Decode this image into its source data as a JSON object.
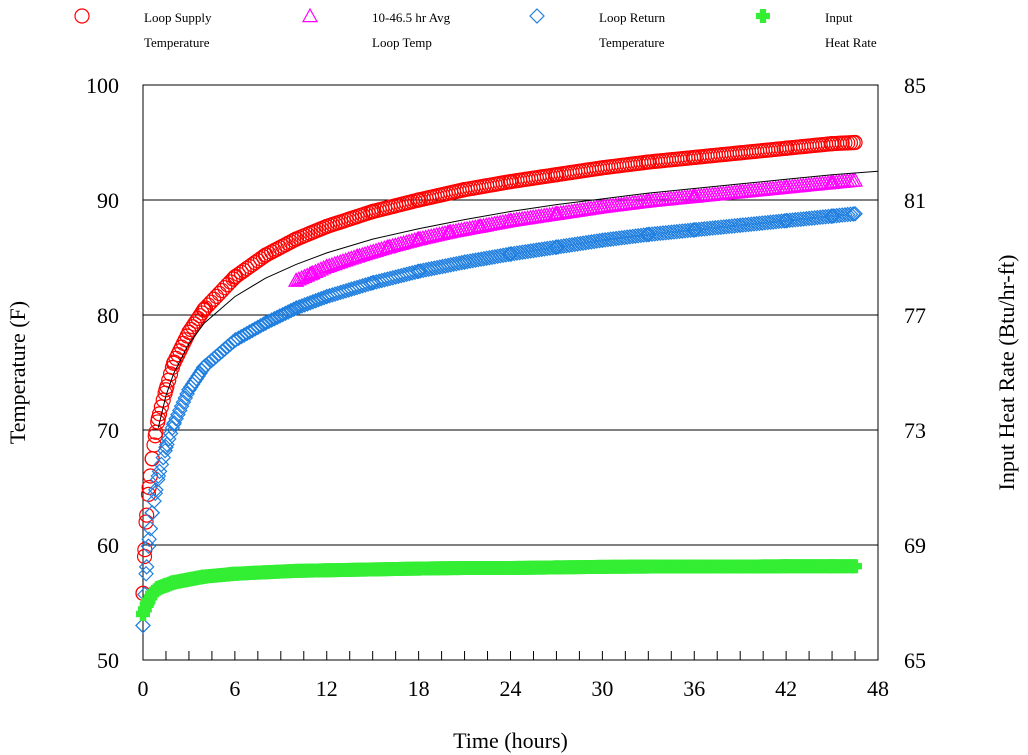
{
  "chart_data": {
    "type": "scatter",
    "title": "",
    "xlabel": "Time (hours)",
    "ylabel": "Temperature (F)",
    "y2label": "Input Heat Rate (Btu/hr-ft)",
    "xlim": [
      0,
      48
    ],
    "ylim": [
      50,
      100
    ],
    "y2lim": [
      65,
      85
    ],
    "xticks": [
      "0",
      "6",
      "12",
      "18",
      "24",
      "30",
      "36",
      "42",
      "48"
    ],
    "yticks": [
      "50",
      "60",
      "70",
      "80",
      "90",
      "100"
    ],
    "y2ticks": [
      "65",
      "69",
      "73",
      "77",
      "81",
      "85"
    ],
    "grid": "horizontal",
    "legend_position": "top",
    "series": [
      {
        "name": "Loop Supply Temperature",
        "name_lines": [
          "Loop Supply",
          "Temperature"
        ],
        "marker": "circle",
        "color": "#ff0000",
        "axis": "left",
        "x": [
          0,
          0.1,
          0.2,
          0.4,
          0.6,
          0.8,
          1,
          1.5,
          2,
          3,
          4,
          6,
          8,
          10,
          12,
          15,
          18,
          21,
          24,
          27,
          30,
          33,
          36,
          39,
          42,
          45,
          46.5
        ],
        "y": [
          55.8,
          59,
          62,
          65,
          67.5,
          69.5,
          71,
          73.5,
          75.8,
          78.5,
          80.5,
          83.3,
          85.2,
          86.6,
          87.7,
          89,
          90,
          90.9,
          91.6,
          92.2,
          92.8,
          93.3,
          93.7,
          94.1,
          94.5,
          94.9,
          95
        ]
      },
      {
        "name": "10-46.5 hr Avg Loop Temp",
        "name_lines": [
          "10-46.5 hr Avg",
          "Loop Temp"
        ],
        "marker": "triangle",
        "color": "#ff00ff",
        "axis": "left",
        "x": [
          10,
          11,
          12,
          14,
          16,
          18,
          20,
          22,
          24,
          27,
          30,
          33,
          36,
          39,
          42,
          45,
          46.5
        ],
        "y": [
          83,
          83.6,
          84.2,
          85.1,
          85.9,
          86.6,
          87.2,
          87.7,
          88.2,
          88.8,
          89.4,
          89.9,
          90.3,
          90.7,
          91.1,
          91.5,
          91.7
        ]
      },
      {
        "name": "Loop Return Temperature",
        "name_lines": [
          "Loop Return",
          "Temperature"
        ],
        "marker": "diamond",
        "color": "#1f7fe0",
        "axis": "left",
        "x": [
          0,
          0.2,
          0.4,
          0.6,
          0.8,
          1,
          1.5,
          2,
          3,
          4,
          6,
          8,
          10,
          12,
          15,
          18,
          21,
          24,
          27,
          30,
          33,
          36,
          39,
          42,
          45,
          46.5
        ],
        "y": [
          53,
          57.5,
          60.5,
          62.8,
          64.5,
          66,
          68.5,
          70.5,
          73.5,
          75.5,
          77.8,
          79.3,
          80.6,
          81.6,
          82.8,
          83.8,
          84.6,
          85.3,
          85.9,
          86.5,
          87,
          87.4,
          87.8,
          88.2,
          88.6,
          88.8
        ]
      },
      {
        "name": "Input Heat Rate",
        "name_lines": [
          "Input",
          "Heat Rate"
        ],
        "marker": "plus",
        "color": "#33ee33",
        "axis": "right",
        "x": [
          0,
          0.3,
          0.6,
          1,
          1.5,
          2,
          3,
          4,
          6,
          8,
          10,
          12,
          15,
          18,
          21,
          24,
          27,
          30,
          33,
          36,
          39,
          42,
          45,
          46.5
        ],
        "y": [
          66.6,
          67,
          67.3,
          67.5,
          67.6,
          67.7,
          67.8,
          67.9,
          68,
          68.05,
          68.1,
          68.12,
          68.15,
          68.18,
          68.2,
          68.2,
          68.22,
          68.24,
          68.25,
          68.25,
          68.25,
          68.26,
          68.26,
          68.26
        ]
      }
    ],
    "fit_line": {
      "color": "#000000",
      "x": [
        1,
        1.5,
        2,
        3,
        4,
        6,
        8,
        10,
        12,
        15,
        18,
        21,
        24,
        27,
        30,
        33,
        36,
        39,
        42,
        45,
        48
      ],
      "y": [
        70.2,
        73,
        74.9,
        77.5,
        79.3,
        81.6,
        83.2,
        84.4,
        85.4,
        86.6,
        87.5,
        88.3,
        89,
        89.6,
        90.1,
        90.6,
        91,
        91.4,
        91.8,
        92.2,
        92.5
      ]
    }
  }
}
